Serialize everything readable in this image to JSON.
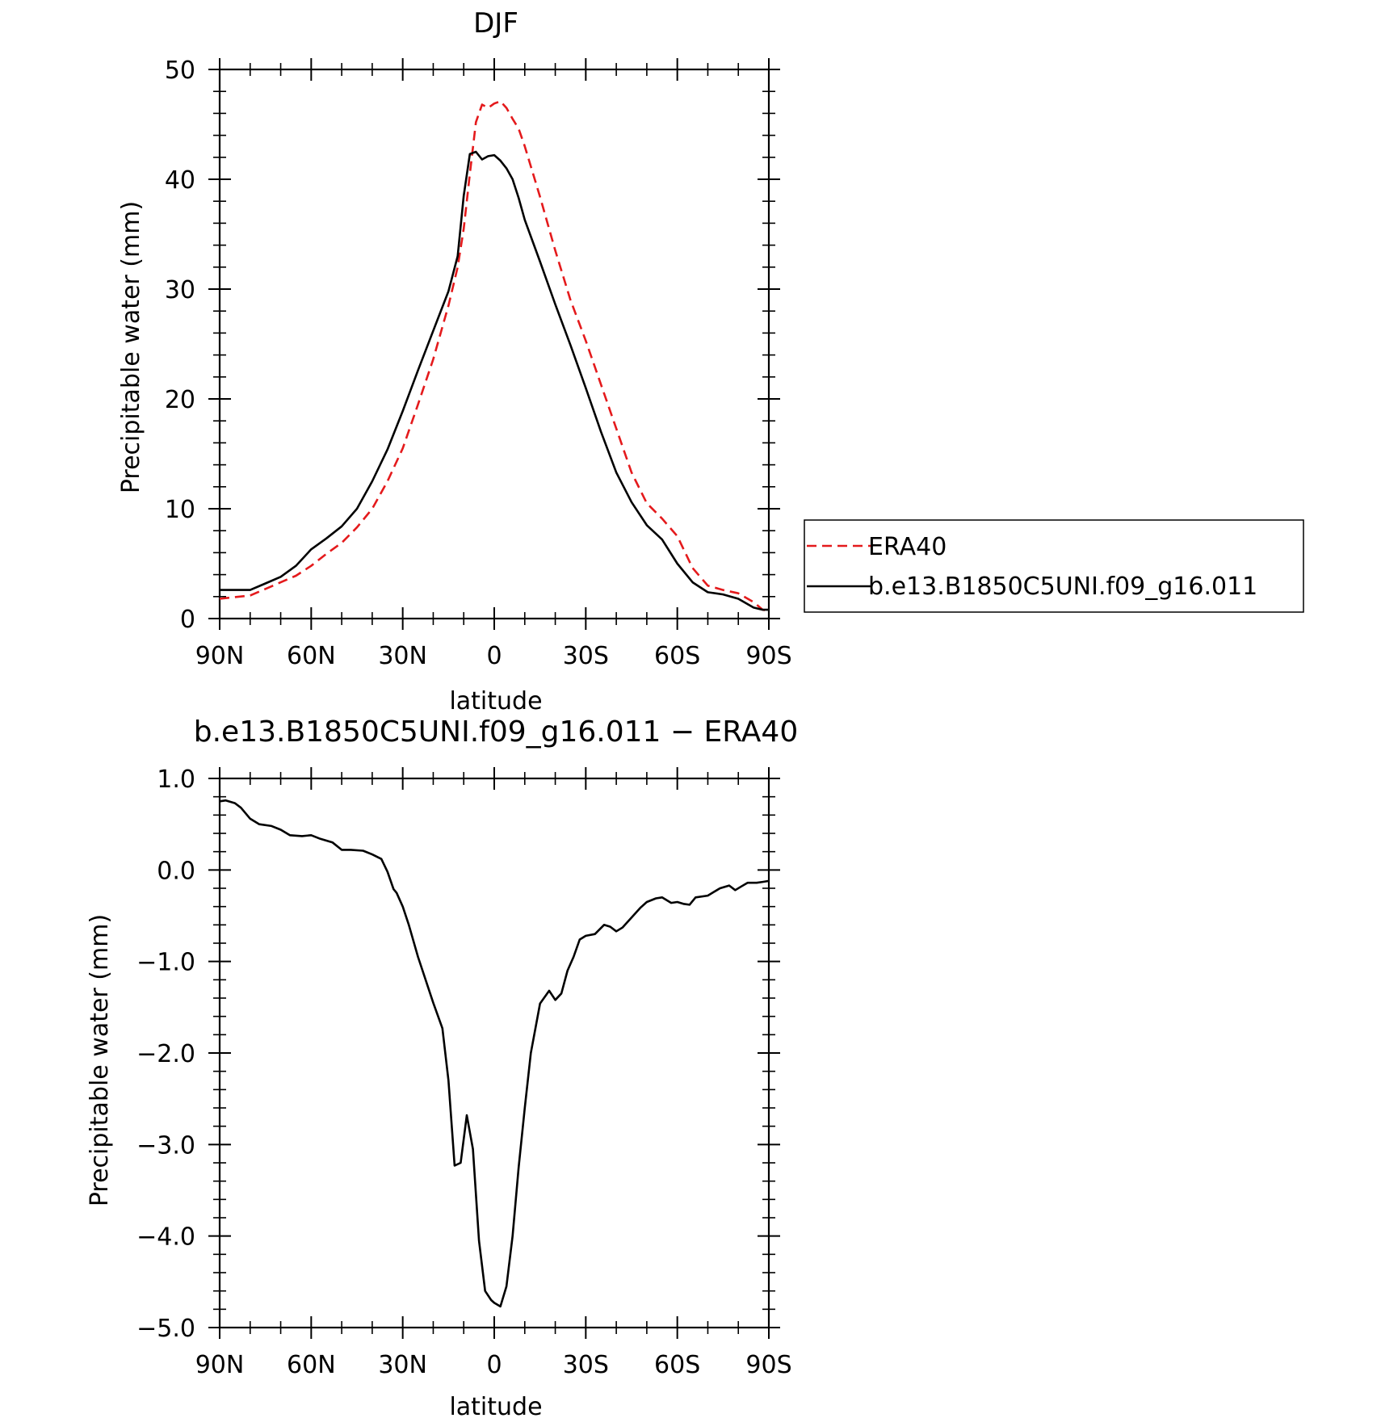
{
  "chart_data": [
    {
      "type": "line",
      "title": "DJF",
      "xlabel": "latitude",
      "ylabel": "Precipitable water (mm)",
      "xlim": [
        -90,
        90
      ],
      "ylim": [
        0,
        50
      ],
      "x_tick_values": [
        -90,
        -60,
        -30,
        0,
        30,
        60,
        90
      ],
      "x_tick_labels": [
        "90N",
        "60N",
        "30N",
        "0",
        "30S",
        "60S",
        "90S"
      ],
      "y_tick_values": [
        0,
        10,
        20,
        30,
        40,
        50
      ],
      "y_tick_labels": [
        "0",
        "10",
        "20",
        "30",
        "40",
        "50"
      ],
      "legend": {
        "position": "right"
      },
      "series": [
        {
          "name": "ERA40",
          "color": "#e41a1c",
          "dash": "dashed",
          "x": [
            -90,
            -80,
            -75,
            -70,
            -65,
            -60,
            -55,
            -50,
            -45,
            -40,
            -35,
            -30,
            -25,
            -20,
            -15,
            -12,
            -10,
            -8,
            -6,
            -4,
            -2,
            0,
            2,
            4,
            6,
            8,
            10,
            15,
            20,
            25,
            30,
            35,
            40,
            45,
            50,
            55,
            60,
            65,
            70,
            75,
            80,
            85,
            88,
            90
          ],
          "y": [
            1.8,
            2.1,
            2.7,
            3.3,
            3.9,
            4.8,
            5.9,
            6.9,
            8.3,
            10.0,
            12.5,
            15.5,
            19.5,
            23.6,
            28.5,
            32.0,
            35.5,
            40.5,
            45.2,
            46.8,
            46.5,
            46.9,
            47.1,
            46.5,
            45.5,
            44.6,
            43.0,
            38.4,
            33.5,
            29.0,
            25.3,
            21.3,
            17.3,
            13.3,
            10.5,
            9.1,
            7.5,
            4.6,
            3.0,
            2.6,
            2.3,
            1.5,
            0.8,
            0.7
          ]
        },
        {
          "name": "b.e13.B1850C5UNI.f09_g16.011",
          "color": "#000000",
          "dash": "solid",
          "x": [
            -90,
            -80,
            -75,
            -70,
            -65,
            -60,
            -55,
            -50,
            -45,
            -40,
            -35,
            -30,
            -25,
            -20,
            -15,
            -12,
            -10,
            -8,
            -6,
            -4,
            -2,
            0,
            2,
            4,
            6,
            8,
            10,
            15,
            20,
            25,
            30,
            35,
            40,
            45,
            50,
            55,
            60,
            65,
            70,
            75,
            80,
            85,
            88,
            90
          ],
          "y": [
            2.6,
            2.6,
            3.2,
            3.8,
            4.8,
            6.3,
            7.3,
            8.4,
            10.0,
            12.5,
            15.4,
            18.9,
            22.6,
            26.2,
            29.8,
            33.0,
            38.5,
            42.3,
            42.5,
            41.8,
            42.1,
            42.2,
            41.7,
            41.0,
            40.0,
            38.3,
            36.3,
            32.5,
            28.6,
            24.9,
            21.0,
            17.0,
            13.3,
            10.6,
            8.5,
            7.2,
            5.0,
            3.3,
            2.4,
            2.2,
            1.8,
            1.0,
            0.8,
            0.8
          ]
        }
      ]
    },
    {
      "type": "line",
      "title": "b.e13.B1850C5UNI.f09_g16.011 − ERA40",
      "xlabel": "latitude",
      "ylabel": "Precipitable water (mm)",
      "xlim": [
        -90,
        90
      ],
      "ylim": [
        -5.0,
        1.0
      ],
      "x_tick_values": [
        -90,
        -60,
        -30,
        0,
        30,
        60,
        90
      ],
      "x_tick_labels": [
        "90N",
        "60N",
        "30N",
        "0",
        "30S",
        "60S",
        "90S"
      ],
      "y_tick_values": [
        -5.0,
        -4.0,
        -3.0,
        -2.0,
        -1.0,
        0.0,
        1.0
      ],
      "y_tick_labels": [
        "−5.0",
        "−4.0",
        "−3.0",
        "−2.0",
        "−1.0",
        "0.0",
        "1.0"
      ],
      "series": [
        {
          "color": "#000000",
          "dash": "solid",
          "x": [
            -90,
            -88,
            -85,
            -83,
            -80,
            -77,
            -73,
            -70,
            -67,
            -63,
            -60,
            -57,
            -53,
            -50,
            -47,
            -43,
            -40,
            -37,
            -35,
            -33,
            -32,
            -30,
            -28,
            -25,
            -20,
            -17,
            -15,
            -13,
            -11,
            -9,
            -7,
            -5,
            -3,
            -1,
            0,
            2,
            4,
            6,
            8,
            10,
            12,
            15,
            18,
            20,
            22,
            24,
            26,
            28,
            30,
            33,
            36,
            38,
            40,
            42,
            45,
            48,
            50,
            53,
            55,
            58,
            60,
            62,
            64,
            66,
            70,
            72,
            74,
            77,
            79,
            81,
            83,
            86,
            88,
            90
          ],
          "y": [
            0.75,
            0.76,
            0.73,
            0.68,
            0.56,
            0.5,
            0.48,
            0.44,
            0.38,
            0.37,
            0.38,
            0.34,
            0.3,
            0.22,
            0.22,
            0.21,
            0.17,
            0.12,
            -0.02,
            -0.21,
            -0.25,
            -0.4,
            -0.6,
            -0.95,
            -1.45,
            -1.73,
            -2.3,
            -3.23,
            -3.2,
            -2.68,
            -3.05,
            -4.05,
            -4.6,
            -4.7,
            -4.73,
            -4.77,
            -4.55,
            -4.0,
            -3.25,
            -2.6,
            -2.0,
            -1.46,
            -1.32,
            -1.42,
            -1.35,
            -1.1,
            -0.95,
            -0.76,
            -0.72,
            -0.7,
            -0.6,
            -0.62,
            -0.67,
            -0.63,
            -0.52,
            -0.41,
            -0.35,
            -0.31,
            -0.3,
            -0.36,
            -0.35,
            -0.37,
            -0.38,
            -0.3,
            -0.28,
            -0.24,
            -0.2,
            -0.17,
            -0.22,
            -0.18,
            -0.14,
            -0.14,
            -0.13,
            -0.12
          ]
        }
      ]
    }
  ]
}
